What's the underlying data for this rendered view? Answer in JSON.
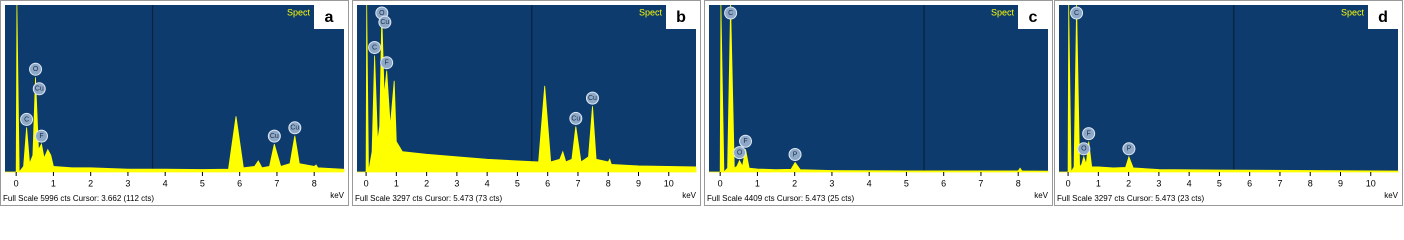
{
  "chart_data": [
    {
      "type": "line",
      "panel_label": "a",
      "title": "Spect",
      "x_label": "keV",
      "footer": "Full Scale 5996 cts Cursor: 3.662 (112 cts)",
      "cursor": 3.662,
      "color": "#ffff00",
      "xlim": [
        -0.3,
        8.8
      ],
      "xticks": [
        0,
        1,
        2,
        3,
        4,
        5,
        6,
        7,
        8
      ],
      "ylim": [
        0,
        5996
      ],
      "x": [
        -0.3,
        0,
        0.02,
        0.08,
        0.2,
        0.28,
        0.36,
        0.45,
        0.52,
        0.6,
        0.68,
        0.75,
        0.85,
        0.93,
        1.0,
        1.5,
        2,
        3,
        4,
        5,
        5.7,
        5.9,
        6.1,
        6.4,
        6.5,
        6.6,
        6.8,
        6.93,
        7.1,
        7.35,
        7.48,
        7.6,
        8.0,
        8.05,
        8.1,
        8.8
      ],
      "values": [
        0,
        0,
        5996,
        0,
        200,
        1600,
        300,
        600,
        3400,
        800,
        1000,
        500,
        800,
        600,
        200,
        150,
        150,
        100,
        100,
        90,
        100,
        2000,
        150,
        200,
        400,
        150,
        200,
        1000,
        200,
        300,
        1300,
        300,
        200,
        250,
        150,
        100
      ],
      "annotations": [
        {
          "text": "O",
          "x": 0.52,
          "y": 3400
        },
        {
          "text": "Cu",
          "x": 0.62,
          "y": 2700
        },
        {
          "text": "C",
          "x": 0.28,
          "y": 1600
        },
        {
          "text": "F",
          "x": 0.68,
          "y": 1000
        },
        {
          "text": "Cu",
          "x": 6.93,
          "y": 1000
        },
        {
          "text": "Cu",
          "x": 7.48,
          "y": 1300
        }
      ]
    },
    {
      "type": "line",
      "panel_label": "b",
      "title": "Spect",
      "x_label": "keV",
      "footer": "Full Scale 3297 cts Cursor: 5.473 (73 cts)",
      "cursor": 5.473,
      "color": "#ffff00",
      "xlim": [
        -0.3,
        10.9
      ],
      "xticks": [
        0,
        1,
        2,
        3,
        4,
        5,
        6,
        7,
        8,
        9,
        10
      ],
      "ylim": [
        0,
        3297
      ],
      "x": [
        -0.3,
        0,
        0.02,
        0.08,
        0.2,
        0.28,
        0.38,
        0.45,
        0.52,
        0.6,
        0.68,
        0.8,
        0.93,
        1.0,
        1.2,
        2,
        3,
        4,
        5,
        5.7,
        5.9,
        6.1,
        6.4,
        6.5,
        6.6,
        6.8,
        6.93,
        7.1,
        7.35,
        7.48,
        7.6,
        8.0,
        8.05,
        8.1,
        9,
        10.9
      ],
      "values": [
        0,
        0,
        3297,
        0,
        400,
        2300,
        600,
        900,
        3100,
        1500,
        2000,
        900,
        1800,
        600,
        400,
        350,
        300,
        250,
        220,
        200,
        1700,
        200,
        250,
        400,
        200,
        250,
        900,
        200,
        300,
        1300,
        250,
        200,
        250,
        150,
        120,
        100
      ],
      "annotations": [
        {
          "text": "O",
          "x": 0.52,
          "y": 3100
        },
        {
          "text": "Cu",
          "x": 0.62,
          "y": 2800
        },
        {
          "text": "F",
          "x": 0.68,
          "y": 2000
        },
        {
          "text": "C",
          "x": 0.28,
          "y": 2300
        },
        {
          "text": "Cu",
          "x": 6.93,
          "y": 900
        },
        {
          "text": "Cu",
          "x": 7.48,
          "y": 1300
        }
      ]
    },
    {
      "type": "line",
      "panel_label": "c",
      "title": "Spect",
      "x_label": "keV",
      "footer": "Full Scale 4409 cts Cursor: 5.473 (25 cts)",
      "cursor": 5.473,
      "color": "#ffff00",
      "xlim": [
        -0.3,
        8.8
      ],
      "xticks": [
        0,
        1,
        2,
        3,
        4,
        5,
        6,
        7,
        8
      ],
      "ylim": [
        0,
        4409
      ],
      "x": [
        -0.3,
        0,
        0.02,
        0.1,
        0.2,
        0.28,
        0.38,
        0.45,
        0.52,
        0.6,
        0.68,
        0.78,
        1.0,
        1.5,
        1.9,
        2.01,
        2.15,
        3,
        5,
        7,
        8.0,
        8.05,
        8.1,
        8.8
      ],
      "values": [
        0,
        0,
        4409,
        0,
        100,
        4409,
        100,
        150,
        300,
        150,
        600,
        100,
        80,
        60,
        70,
        250,
        60,
        40,
        30,
        30,
        30,
        100,
        30,
        20
      ],
      "annotations": [
        {
          "text": "C",
          "x": 0.28,
          "y": 4100
        },
        {
          "text": "F",
          "x": 0.68,
          "y": 600
        },
        {
          "text": "O",
          "x": 0.52,
          "y": 300
        },
        {
          "text": "P",
          "x": 2.01,
          "y": 250
        }
      ]
    },
    {
      "type": "line",
      "panel_label": "d",
      "title": "Spect",
      "x_label": "keV",
      "footer": "Full Scale 3297 cts Cursor: 5.473 (23 cts)",
      "cursor": 5.473,
      "color": "#ffff00",
      "xlim": [
        -0.3,
        10.9
      ],
      "xticks": [
        0,
        1,
        2,
        3,
        4,
        5,
        6,
        7,
        8,
        9,
        10
      ],
      "ylim": [
        0,
        3297
      ],
      "x": [
        -0.3,
        0,
        0.02,
        0.1,
        0.2,
        0.28,
        0.38,
        0.45,
        0.52,
        0.6,
        0.68,
        0.78,
        1.0,
        1.5,
        1.9,
        2.01,
        2.15,
        3,
        5,
        8,
        10.9
      ],
      "values": [
        0,
        0,
        3297,
        0,
        100,
        3297,
        100,
        150,
        300,
        150,
        600,
        100,
        100,
        80,
        90,
        300,
        80,
        50,
        40,
        30,
        20
      ],
      "annotations": [
        {
          "text": "C",
          "x": 0.28,
          "y": 3100
        },
        {
          "text": "F",
          "x": 0.68,
          "y": 600
        },
        {
          "text": "O",
          "x": 0.52,
          "y": 300
        },
        {
          "text": "P",
          "x": 2.01,
          "y": 300
        }
      ]
    }
  ]
}
